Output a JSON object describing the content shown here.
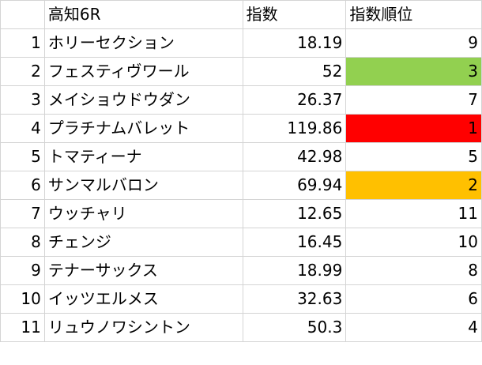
{
  "sheet": {
    "header": {
      "race": "高知6R",
      "index": "指数",
      "rank": "指数順位"
    },
    "rows": [
      {
        "num": "1",
        "name": "ホリーセクション",
        "index": "18.19",
        "rank": "9",
        "fill": ""
      },
      {
        "num": "2",
        "name": "フェスティヴワール",
        "index": "52",
        "rank": "3",
        "fill": "#92d050"
      },
      {
        "num": "3",
        "name": "メイショウドウダン",
        "index": "26.37",
        "rank": "7",
        "fill": ""
      },
      {
        "num": "4",
        "name": "プラチナムバレット",
        "index": "119.86",
        "rank": "1",
        "fill": "#ff0000"
      },
      {
        "num": "5",
        "name": "トマティーナ",
        "index": "42.98",
        "rank": "5",
        "fill": ""
      },
      {
        "num": "6",
        "name": "サンマルバロン",
        "index": "69.94",
        "rank": "2",
        "fill": "#ffc000"
      },
      {
        "num": "7",
        "name": "ウッチャリ",
        "index": "12.65",
        "rank": "11",
        "fill": ""
      },
      {
        "num": "8",
        "name": "チェンジ",
        "index": "16.45",
        "rank": "10",
        "fill": ""
      },
      {
        "num": "9",
        "name": "テナーサックス",
        "index": "18.99",
        "rank": "8",
        "fill": ""
      },
      {
        "num": "10",
        "name": "イッツエルメス",
        "index": "32.63",
        "rank": "6",
        "fill": ""
      },
      {
        "num": "11",
        "name": "リュウノワシントン",
        "index": "50.3",
        "rank": "4",
        "fill": ""
      }
    ]
  }
}
